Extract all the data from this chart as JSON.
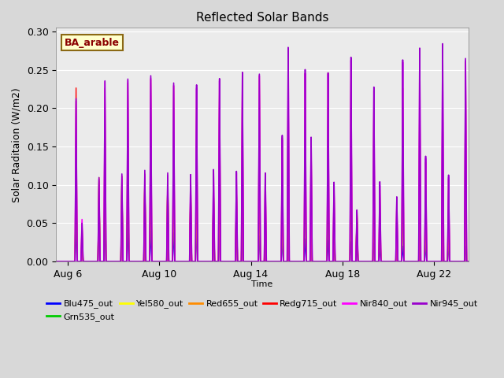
{
  "title": "Reflected Solar Bands",
  "xlabel": "Time",
  "ylabel": "Solar Raditaion (W/m2)",
  "annotation_text": "BA_arable",
  "annotation_color": "#8B0000",
  "annotation_bg": "#ffffcc",
  "annotation_border": "#8B6914",
  "xlim_days": [
    5.5,
    23.5
  ],
  "ylim": [
    0.0,
    0.305
  ],
  "xticks_labels": [
    "Aug 6",
    "Aug 10",
    "Aug 14",
    "Aug 18",
    "Aug 22"
  ],
  "xticks_positions": [
    6,
    10,
    14,
    18,
    22
  ],
  "series": [
    {
      "name": "Blu475_out",
      "color": "#0000FF",
      "lw": 1.0
    },
    {
      "name": "Grn535_out",
      "color": "#00CC00",
      "lw": 1.0
    },
    {
      "name": "Yel580_out",
      "color": "#FFFF00",
      "lw": 1.0
    },
    {
      "name": "Red655_out",
      "color": "#FF8C00",
      "lw": 1.0
    },
    {
      "name": "Redg715_out",
      "color": "#FF0000",
      "lw": 1.0
    },
    {
      "name": "Nir840_out",
      "color": "#FF00FF",
      "lw": 1.2
    },
    {
      "name": "Nir945_out",
      "color": "#9900CC",
      "lw": 1.2
    }
  ],
  "bg_color": "#d8d8d8",
  "plot_bg": "#ebebeb"
}
